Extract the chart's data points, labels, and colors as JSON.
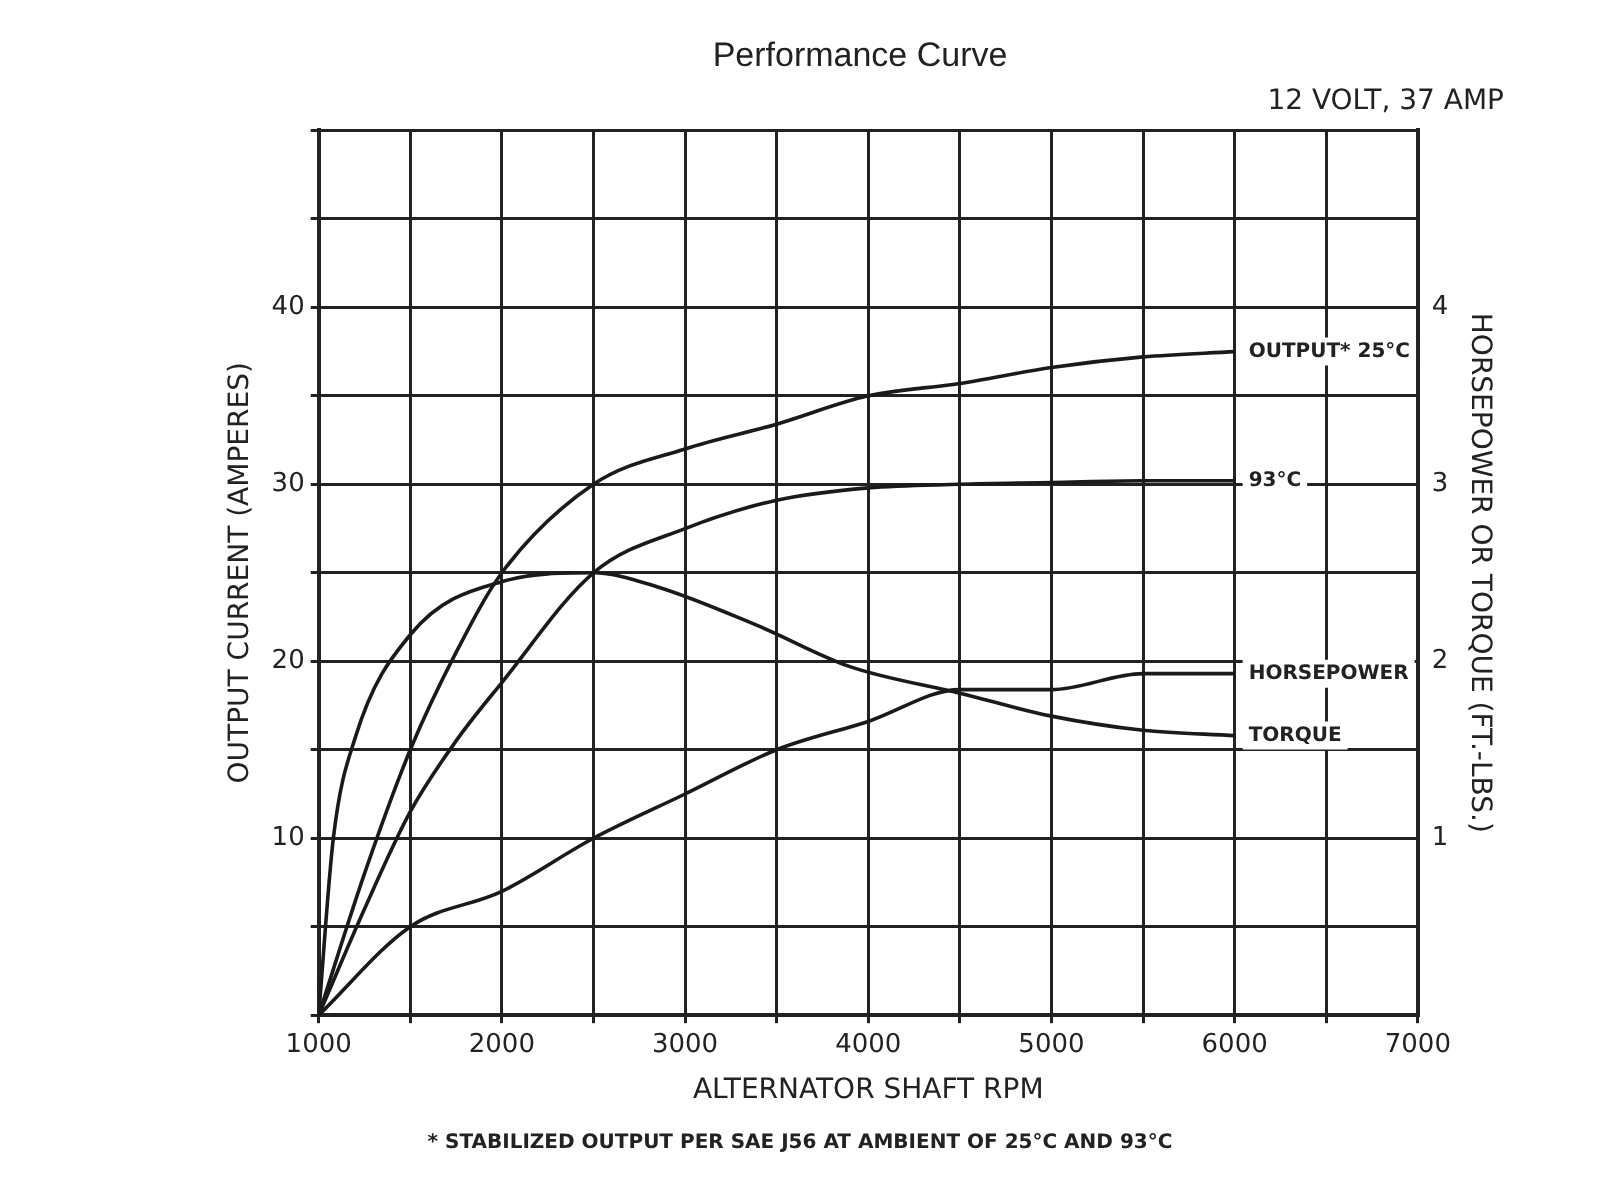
{
  "chart_data": {
    "type": "line",
    "title": "Performance Curve",
    "subtitle": "12 VOLT, 37 AMP",
    "xlabel": "ALTERNATOR SHAFT RPM",
    "ylabel": "OUTPUT CURRENT (AMPERES)",
    "y2label": "HORSEPOWER OR TORQUE (FT.-LBS.)",
    "xlim": [
      1000,
      7000
    ],
    "xticks": [
      1000,
      {
        "value": 1500,
        "label": null
      },
      2000,
      {
        "value": 2500,
        "label": null
      },
      3000,
      {
        "value": 3500,
        "label": null
      },
      4000,
      {
        "value": 4500,
        "label": null
      },
      5000,
      {
        "value": 5500,
        "label": null
      },
      6000,
      {
        "value": 6500,
        "label": null
      },
      7000
    ],
    "ylim": [
      0,
      50
    ],
    "yticks": [
      {
        "value": 0,
        "label": null
      },
      {
        "value": 5,
        "label": null
      },
      10,
      {
        "value": 15,
        "label": null
      },
      20,
      {
        "value": 25,
        "label": null
      },
      30,
      {
        "value": 35,
        "label": null
      },
      40,
      {
        "value": 45,
        "label": null
      },
      {
        "value": 50,
        "label": null
      }
    ],
    "y2lim": [
      0,
      5
    ],
    "y2ticks": [
      1,
      2,
      3,
      4
    ],
    "grid": true,
    "legend": false,
    "marker": "none",
    "line_style": "solid",
    "series": [
      {
        "name": "OUTPUT* 25°C",
        "color": "#1a1a1a",
        "x": [
          1000,
          1250,
          1500,
          1750,
          2000,
          2500,
          3000,
          3500,
          4000,
          4500,
          5000,
          5500,
          6000
        ],
        "values": [
          0,
          8,
          15,
          20.5,
          25,
          30,
          32,
          33.4,
          35,
          35.7,
          36.6,
          37.2,
          37.5
        ]
      },
      {
        "name": "93°C",
        "color": "#1a1a1a",
        "x": [
          1000,
          1250,
          1500,
          1750,
          2000,
          2500,
          3000,
          3500,
          4000,
          4500,
          5000,
          5500,
          6000
        ],
        "values": [
          0,
          6,
          11.5,
          15.5,
          18.8,
          25,
          27.5,
          29.1,
          29.8,
          30,
          30.1,
          30.2,
          30.2
        ]
      },
      {
        "name": "HORSEPOWER",
        "color": "#1a1a1a",
        "axis": "y2",
        "x": [
          1000,
          1500,
          2000,
          2500,
          3000,
          3500,
          4000,
          4500,
          5000,
          5500,
          6000
        ],
        "values": [
          0,
          0.5,
          0.7,
          1.0,
          1.25,
          1.5,
          1.66,
          1.84,
          1.84,
          1.93,
          1.93
        ]
      },
      {
        "name": "TORQUE",
        "color": "#1a1a1a",
        "axis": "y2",
        "x": [
          1000,
          1080,
          1200,
          1500,
          2000,
          2500,
          2850,
          3400,
          3900,
          4500,
          5000,
          5500,
          6000
        ],
        "values": [
          0,
          1.0,
          1.57,
          2.15,
          2.45,
          2.5,
          2.42,
          2.2,
          1.97,
          1.82,
          1.69,
          1.61,
          1.58
        ]
      }
    ],
    "annotations": [
      "* STABILIZED OUTPUT PER SAE J56 AT AMBIENT OF 25°C AND 93°C"
    ]
  }
}
